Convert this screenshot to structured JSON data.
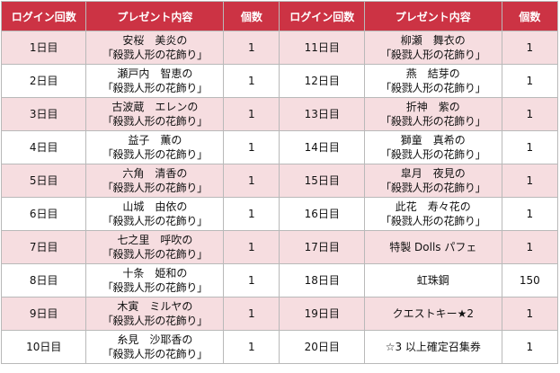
{
  "header": {
    "login": "ログイン回数",
    "present": "プレゼント内容",
    "count": "個数"
  },
  "rows": [
    {
      "left": {
        "day": "1日目",
        "name": "安桜　美炎の",
        "item": "「殺戮人形の花飾り」",
        "count": "1"
      },
      "right": {
        "day": "11日目",
        "name": "柳瀬　舞衣の",
        "item": "「殺戮人形の花飾り」",
        "count": "1"
      }
    },
    {
      "left": {
        "day": "2日目",
        "name": "瀬戸内　智恵の",
        "item": "「殺戮人形の花飾り」",
        "count": "1"
      },
      "right": {
        "day": "12日目",
        "name": "燕　結芽の",
        "item": "「殺戮人形の花飾り」",
        "count": "1"
      }
    },
    {
      "left": {
        "day": "3日目",
        "name": "古波蔵　エレンの",
        "item": "「殺戮人形の花飾り」",
        "count": "1"
      },
      "right": {
        "day": "13日目",
        "name": "折神　紫の",
        "item": "「殺戮人形の花飾り」",
        "count": "1"
      }
    },
    {
      "left": {
        "day": "4日目",
        "name": "益子　薫の",
        "item": "「殺戮人形の花飾り」",
        "count": "1"
      },
      "right": {
        "day": "14日目",
        "name": "獅童　真希の",
        "item": "「殺戮人形の花飾り」",
        "count": "1"
      }
    },
    {
      "left": {
        "day": "5日目",
        "name": "六角　清香の",
        "item": "「殺戮人形の花飾り」",
        "count": "1"
      },
      "right": {
        "day": "15日目",
        "name": "皐月　夜見の",
        "item": "「殺戮人形の花飾り」",
        "count": "1"
      }
    },
    {
      "left": {
        "day": "6日目",
        "name": "山城　由依の",
        "item": "「殺戮人形の花飾り」",
        "count": "1"
      },
      "right": {
        "day": "16日目",
        "name": "此花　寿々花の",
        "item": "「殺戮人形の花飾り」",
        "count": "1"
      }
    },
    {
      "left": {
        "day": "7日目",
        "name": "七之里　呼吹の",
        "item": "「殺戮人形の花飾り」",
        "count": "1"
      },
      "right": {
        "day": "17日目",
        "single": "特製 Dolls パフェ",
        "count": "1"
      }
    },
    {
      "left": {
        "day": "8日目",
        "name": "十条　姫和の",
        "item": "「殺戮人形の花飾り」",
        "count": "1"
      },
      "right": {
        "day": "18日目",
        "single": "虹珠鋼",
        "count": "150"
      }
    },
    {
      "left": {
        "day": "9日目",
        "name": "木寅　ミルヤの",
        "item": "「殺戮人形の花飾り」",
        "count": "1"
      },
      "right": {
        "day": "19日目",
        "single": "クエストキー★2",
        "count": "1"
      }
    },
    {
      "left": {
        "day": "10日目",
        "name": "糸見　沙耶香の",
        "item": "「殺戮人形の花飾り」",
        "count": "1"
      },
      "right": {
        "day": "20日目",
        "single": "☆3 以上確定召集券",
        "count": "1"
      }
    }
  ]
}
